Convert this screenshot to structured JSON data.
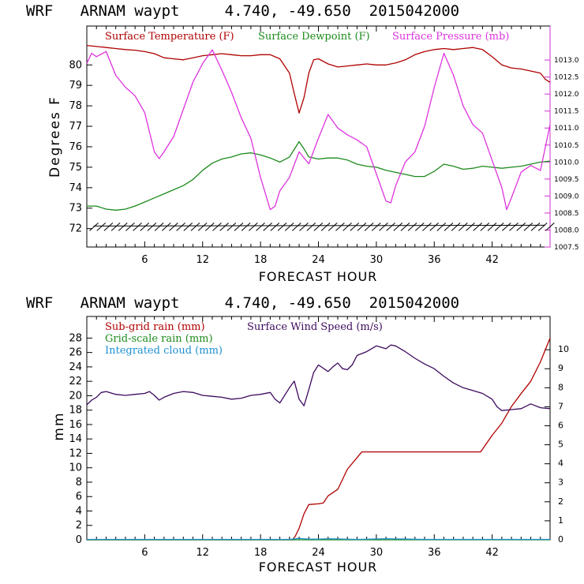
{
  "chart_data": [
    {
      "type": "line",
      "title": "WRF   ARNAM waypt     4.740, -49.650  2015042000",
      "xlabel": "FORECAST HOUR",
      "ylabel": "Degrees F",
      "xlim": [
        0,
        48
      ],
      "xticks": [
        6,
        12,
        18,
        24,
        30,
        36,
        42
      ],
      "ylim": [
        71.1,
        81.9
      ],
      "yticks": [
        72,
        73,
        74,
        75,
        76,
        77,
        78,
        79,
        80
      ],
      "y2lim": [
        1007.5,
        1014.0
      ],
      "y2ticks": [
        "1007.5",
        "1008.0",
        "1008.5",
        "1009.0",
        "1009.5",
        "1010.0",
        "1010.5",
        "1011.0",
        "1011.5",
        "1012.0",
        "1012.5",
        "1013.0"
      ],
      "legend": [
        "Surface Temperature (F)",
        "Surface Dewpoint (F)",
        "Surface Pressure (mb)"
      ],
      "wind_barbs_along_bottom": true,
      "series": [
        {
          "name": "Surface Temperature (F)",
          "color": "#b00000",
          "axis": "left",
          "points": [
            [
              0,
              80.95
            ],
            [
              1,
              80.9
            ],
            [
              2,
              80.85
            ],
            [
              3,
              80.8
            ],
            [
              4,
              80.75
            ],
            [
              5,
              80.72
            ],
            [
              6,
              80.65
            ],
            [
              7,
              80.55
            ],
            [
              8,
              80.35
            ],
            [
              9,
              80.3
            ],
            [
              10,
              80.25
            ],
            [
              11,
              80.35
            ],
            [
              12,
              80.45
            ],
            [
              13,
              80.5
            ],
            [
              14,
              80.55
            ],
            [
              15,
              80.5
            ],
            [
              16,
              80.45
            ],
            [
              17,
              80.45
            ],
            [
              18,
              80.5
            ],
            [
              19,
              80.5
            ],
            [
              20,
              80.3
            ],
            [
              21,
              79.6
            ],
            [
              21.5,
              78.6
            ],
            [
              22,
              77.65
            ],
            [
              22.5,
              78.4
            ],
            [
              23,
              79.6
            ],
            [
              23.5,
              80.25
            ],
            [
              24,
              80.3
            ],
            [
              25,
              80.05
            ],
            [
              26,
              79.9
            ],
            [
              27,
              79.95
            ],
            [
              28,
              80.0
            ],
            [
              29,
              80.05
            ],
            [
              30,
              80.0
            ],
            [
              31,
              80.0
            ],
            [
              32,
              80.1
            ],
            [
              33,
              80.25
            ],
            [
              34,
              80.5
            ],
            [
              35,
              80.65
            ],
            [
              36,
              80.75
            ],
            [
              37,
              80.8
            ],
            [
              38,
              80.75
            ],
            [
              39,
              80.8
            ],
            [
              40,
              80.85
            ],
            [
              41,
              80.75
            ],
            [
              42,
              80.4
            ],
            [
              43,
              80.0
            ],
            [
              44,
              79.85
            ],
            [
              45,
              79.8
            ],
            [
              46,
              79.7
            ],
            [
              47,
              79.6
            ],
            [
              47.5,
              79.3
            ],
            [
              48,
              79.15
            ]
          ]
        },
        {
          "name": "Surface Dewpoint (F)",
          "color": "#1c8a1c",
          "axis": "left",
          "points": [
            [
              0,
              73.1
            ],
            [
              1,
              73.1
            ],
            [
              2,
              72.95
            ],
            [
              3,
              72.9
            ],
            [
              4,
              72.95
            ],
            [
              5,
              73.1
            ],
            [
              6,
              73.3
            ],
            [
              7,
              73.5
            ],
            [
              8,
              73.7
            ],
            [
              9,
              73.9
            ],
            [
              10,
              74.1
            ],
            [
              11,
              74.4
            ],
            [
              12,
              74.85
            ],
            [
              13,
              75.2
            ],
            [
              14,
              75.4
            ],
            [
              15,
              75.5
            ],
            [
              16,
              75.65
            ],
            [
              17,
              75.7
            ],
            [
              18,
              75.6
            ],
            [
              19,
              75.45
            ],
            [
              20,
              75.25
            ],
            [
              21,
              75.5
            ],
            [
              22,
              76.25
            ],
            [
              22.5,
              75.9
            ],
            [
              23,
              75.5
            ],
            [
              24,
              75.4
            ],
            [
              25,
              75.45
            ],
            [
              26,
              75.45
            ],
            [
              27,
              75.35
            ],
            [
              28,
              75.15
            ],
            [
              29,
              75.05
            ],
            [
              30,
              75.0
            ],
            [
              31,
              74.85
            ],
            [
              32,
              74.75
            ],
            [
              33,
              74.65
            ],
            [
              34,
              74.55
            ],
            [
              35,
              74.55
            ],
            [
              36,
              74.8
            ],
            [
              37,
              75.15
            ],
            [
              38,
              75.05
            ],
            [
              39,
              74.9
            ],
            [
              40,
              74.95
            ],
            [
              41,
              75.05
            ],
            [
              42,
              75.0
            ],
            [
              43,
              74.95
            ],
            [
              44,
              75.0
            ],
            [
              45,
              75.05
            ],
            [
              46,
              75.15
            ],
            [
              47,
              75.25
            ],
            [
              48,
              75.3
            ]
          ]
        },
        {
          "name": "Surface Pressure (mb)",
          "color": "#dd33dd",
          "axis": "right",
          "points": [
            [
              0,
              1012.9
            ],
            [
              0.5,
              1013.2
            ],
            [
              1,
              1013.1
            ],
            [
              2,
              1013.25
            ],
            [
              3,
              1012.55
            ],
            [
              4,
              1012.2
            ],
            [
              5,
              1011.95
            ],
            [
              6,
              1011.45
            ],
            [
              7,
              1010.3
            ],
            [
              7.5,
              1010.1
            ],
            [
              8,
              1010.3
            ],
            [
              9,
              1010.75
            ],
            [
              10,
              1011.55
            ],
            [
              11,
              1012.35
            ],
            [
              12,
              1012.9
            ],
            [
              13,
              1013.3
            ],
            [
              14,
              1012.7
            ],
            [
              15,
              1012.05
            ],
            [
              16,
              1011.3
            ],
            [
              17,
              1010.7
            ],
            [
              18,
              1009.55
            ],
            [
              19,
              1008.6
            ],
            [
              19.5,
              1008.7
            ],
            [
              20,
              1009.15
            ],
            [
              21,
              1009.55
            ],
            [
              22,
              1010.3
            ],
            [
              23,
              1009.95
            ],
            [
              24,
              1010.7
            ],
            [
              25,
              1011.4
            ],
            [
              26,
              1011.0
            ],
            [
              27,
              1010.8
            ],
            [
              28,
              1010.65
            ],
            [
              29,
              1010.45
            ],
            [
              30,
              1009.65
            ],
            [
              31,
              1008.85
            ],
            [
              31.5,
              1008.8
            ],
            [
              32,
              1009.3
            ],
            [
              33,
              1010.0
            ],
            [
              34,
              1010.3
            ],
            [
              35,
              1011.05
            ],
            [
              36,
              1012.2
            ],
            [
              37,
              1013.2
            ],
            [
              38,
              1012.55
            ],
            [
              39,
              1011.65
            ],
            [
              40,
              1011.1
            ],
            [
              41,
              1010.85
            ],
            [
              42,
              1010.05
            ],
            [
              43,
              1009.25
            ],
            [
              43.5,
              1008.6
            ],
            [
              44,
              1008.95
            ],
            [
              45,
              1009.7
            ],
            [
              46,
              1009.9
            ],
            [
              47,
              1009.75
            ],
            [
              48,
              1011.1
            ]
          ]
        }
      ]
    },
    {
      "type": "line",
      "title": "WRF   ARNAM waypt     4.740, -49.650  2015042000",
      "xlabel": "FORECAST HOUR",
      "ylabel": "mm",
      "xlim": [
        0,
        48
      ],
      "xticks": [
        6,
        12,
        18,
        24,
        30,
        36,
        42
      ],
      "ylim": [
        0,
        31
      ],
      "yticks": [
        0,
        2,
        4,
        6,
        8,
        10,
        12,
        14,
        16,
        18,
        20,
        22,
        24,
        26,
        28
      ],
      "y2lim": [
        0,
        11.75
      ],
      "y2ticks": [
        0,
        1,
        2,
        3,
        4,
        5,
        6,
        7,
        8,
        9,
        10
      ],
      "legend": [
        "Sub-grid rain (mm)",
        "Grid-scale rain (mm)",
        "Integrated cloud (mm)",
        "Surface Wind Speed (m/s)"
      ],
      "series": [
        {
          "name": "Sub-grid rain (mm)",
          "color": "#b00000",
          "axis": "left",
          "points": [
            [
              0,
              0
            ],
            [
              21.3,
              0
            ],
            [
              21.6,
              0.5
            ],
            [
              22,
              1.6
            ],
            [
              22.5,
              3.6
            ],
            [
              23,
              4.9
            ],
            [
              24,
              5.0
            ],
            [
              24.5,
              5.1
            ],
            [
              25,
              6.1
            ],
            [
              26,
              7.0
            ],
            [
              27,
              9.8
            ],
            [
              28,
              11.4
            ],
            [
              28.5,
              12.2
            ],
            [
              40.8,
              12.2
            ],
            [
              42,
              14.5
            ],
            [
              43,
              16.2
            ],
            [
              44,
              18.5
            ],
            [
              45,
              20.3
            ],
            [
              46,
              22.0
            ],
            [
              47,
              24.7
            ],
            [
              48,
              28.0
            ]
          ]
        },
        {
          "name": "Grid-scale rain (mm)",
          "color": "#1c8a1c",
          "axis": "left",
          "points": [
            [
              0,
              0
            ],
            [
              48,
              0
            ]
          ]
        },
        {
          "name": "Integrated cloud (mm)",
          "color": "#1e90d0",
          "axis": "left",
          "points": [
            [
              0,
              0.05
            ],
            [
              21,
              0.05
            ],
            [
              22,
              0.2
            ],
            [
              23,
              0.1
            ],
            [
              24,
              0.1
            ],
            [
              25,
              0.15
            ],
            [
              28,
              0.05
            ],
            [
              31,
              0.15
            ],
            [
              35,
              0.05
            ],
            [
              48,
              0.05
            ]
          ]
        },
        {
          "name": "Surface Wind Speed (m/s)",
          "color": "#3d0a5e",
          "axis": "right",
          "points": [
            [
              0,
              7.1
            ],
            [
              0.5,
              7.35
            ],
            [
              1,
              7.5
            ],
            [
              1.5,
              7.75
            ],
            [
              2,
              7.8
            ],
            [
              3,
              7.65
            ],
            [
              4,
              7.6
            ],
            [
              5,
              7.65
            ],
            [
              6,
              7.7
            ],
            [
              6.5,
              7.8
            ],
            [
              7,
              7.6
            ],
            [
              7.5,
              7.35
            ],
            [
              8,
              7.5
            ],
            [
              9,
              7.7
            ],
            [
              10,
              7.8
            ],
            [
              11,
              7.75
            ],
            [
              12,
              7.6
            ],
            [
              13,
              7.55
            ],
            [
              14,
              7.5
            ],
            [
              15,
              7.4
            ],
            [
              16,
              7.45
            ],
            [
              17,
              7.6
            ],
            [
              18,
              7.65
            ],
            [
              19,
              7.75
            ],
            [
              19.5,
              7.4
            ],
            [
              20,
              7.2
            ],
            [
              21,
              8.0
            ],
            [
              21.5,
              8.35
            ],
            [
              22,
              7.4
            ],
            [
              22.5,
              7.05
            ],
            [
              23,
              7.9
            ],
            [
              23.5,
              8.8
            ],
            [
              24,
              9.2
            ],
            [
              25,
              8.85
            ],
            [
              25.5,
              9.1
            ],
            [
              26,
              9.3
            ],
            [
              26.5,
              9.0
            ],
            [
              27,
              8.95
            ],
            [
              27.5,
              9.2
            ],
            [
              28,
              9.7
            ],
            [
              29,
              9.9
            ],
            [
              30,
              10.2
            ],
            [
              31,
              10.05
            ],
            [
              31.5,
              10.25
            ],
            [
              32,
              10.2
            ],
            [
              33,
              9.9
            ],
            [
              34,
              9.55
            ],
            [
              35,
              9.25
            ],
            [
              36,
              9.0
            ],
            [
              37,
              8.6
            ],
            [
              38,
              8.25
            ],
            [
              39,
              8.0
            ],
            [
              40,
              7.85
            ],
            [
              41,
              7.7
            ],
            [
              42,
              7.4
            ],
            [
              42.5,
              7.0
            ],
            [
              43,
              6.8
            ],
            [
              44,
              6.85
            ],
            [
              45,
              6.9
            ],
            [
              46,
              7.15
            ],
            [
              47,
              6.95
            ],
            [
              48,
              6.9
            ]
          ]
        }
      ]
    }
  ]
}
